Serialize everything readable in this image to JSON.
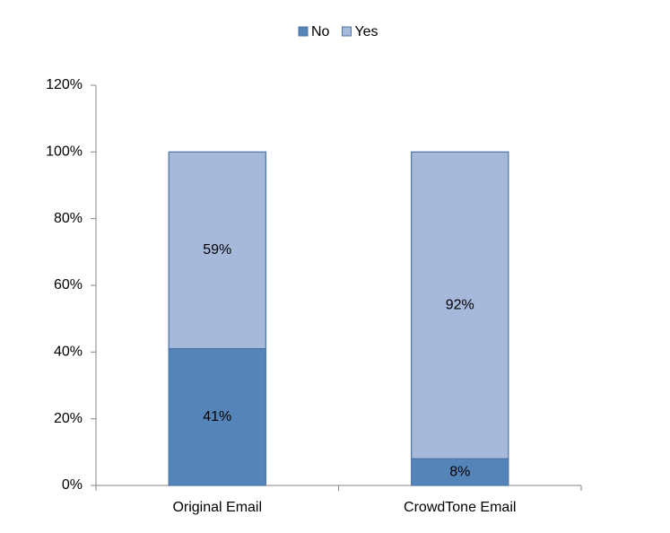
{
  "chart_data": {
    "type": "stacked_bar",
    "categories": [
      "Original Email",
      "CrowdTone Email"
    ],
    "series": [
      {
        "name": "No",
        "color": "#5585b8",
        "values": [
          41,
          8
        ],
        "value_labels": [
          "41%",
          "8%"
        ]
      },
      {
        "name": "Yes",
        "color": "#a6b9db",
        "values": [
          59,
          92
        ],
        "value_labels": [
          "59%",
          "92%"
        ]
      }
    ],
    "ylim": [
      0,
      120
    ],
    "yticks": [
      {
        "value": 0,
        "label": "0%"
      },
      {
        "value": 20,
        "label": "20%"
      },
      {
        "value": 40,
        "label": "40%"
      },
      {
        "value": 60,
        "label": "60%"
      },
      {
        "value": 80,
        "label": "80%"
      },
      {
        "value": 100,
        "label": "100%"
      },
      {
        "value": 120,
        "label": "120%"
      }
    ],
    "legend": "top"
  }
}
